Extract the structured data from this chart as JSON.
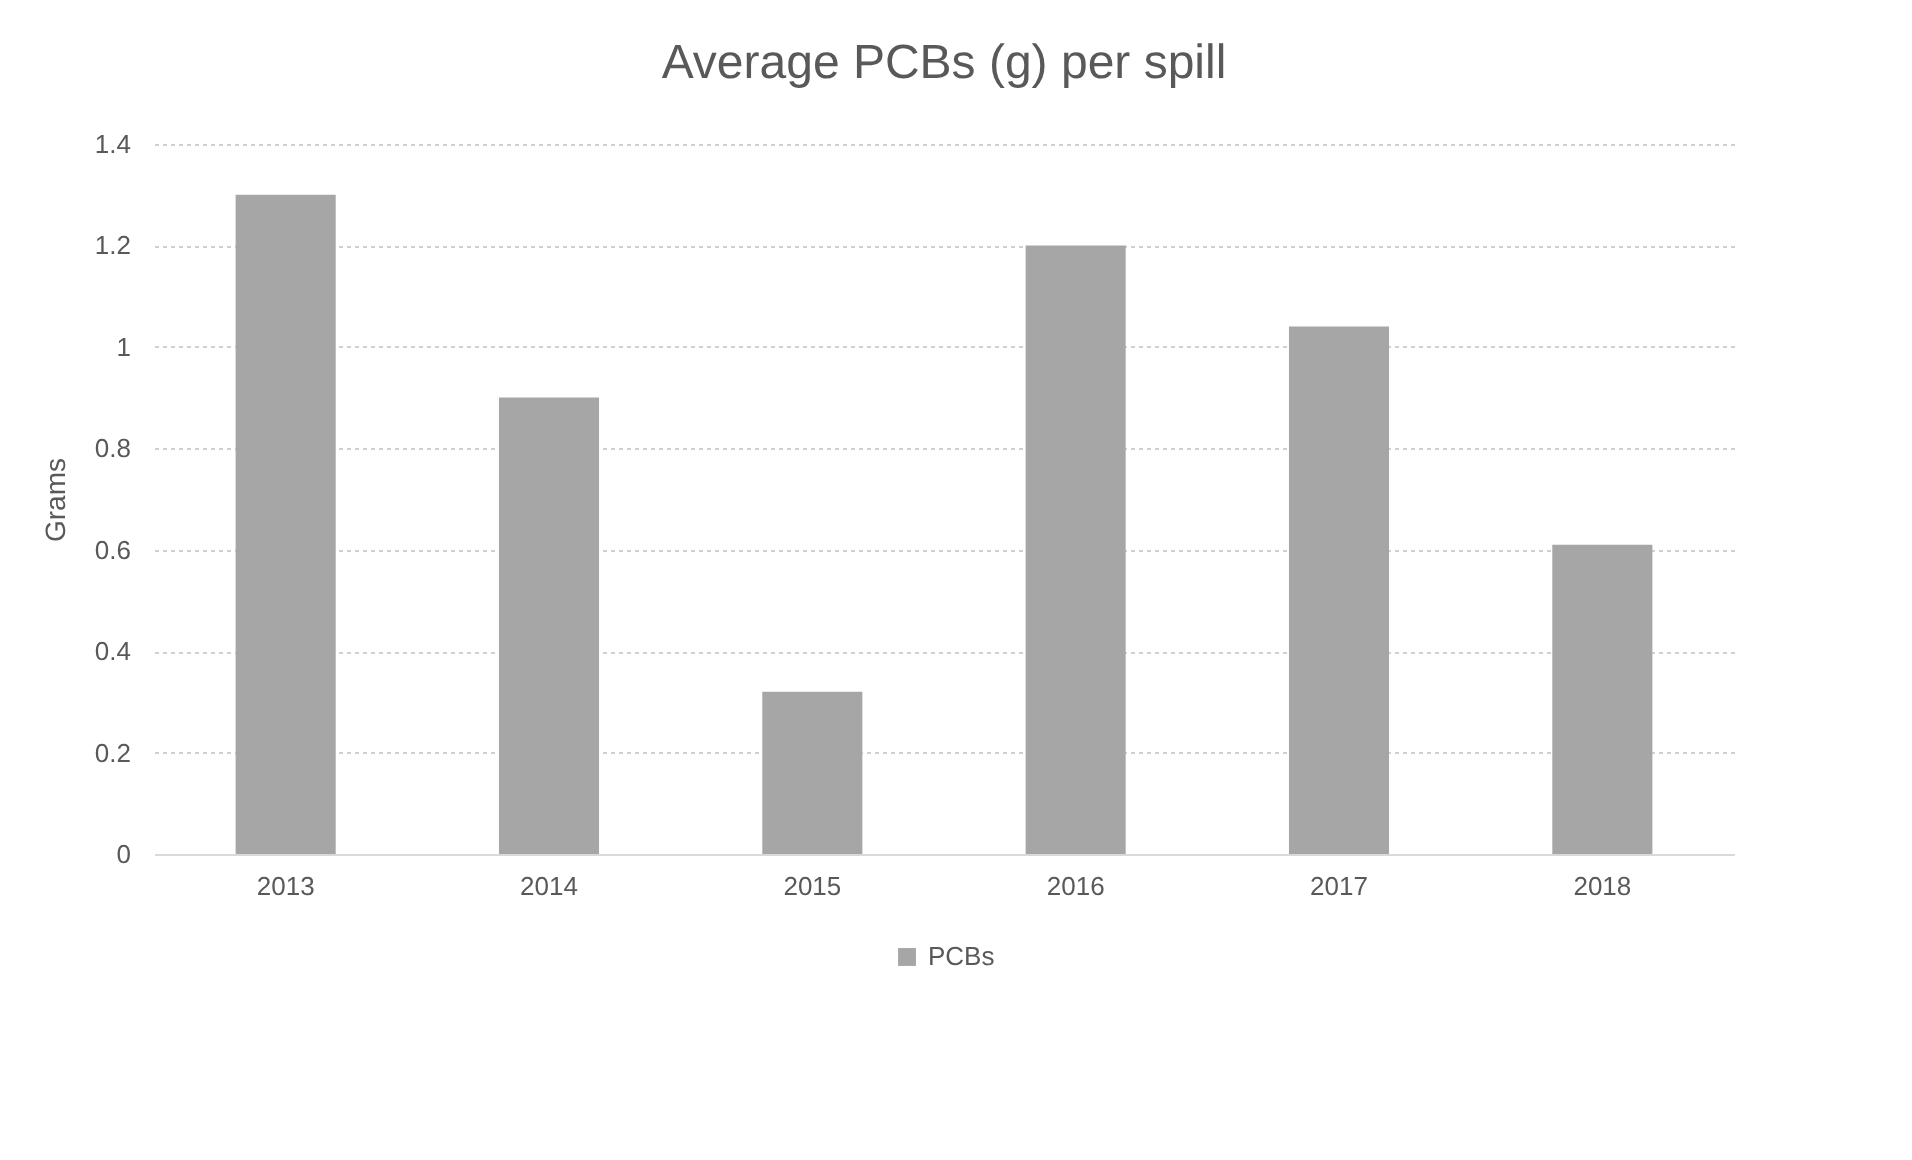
{
  "chart_data": {
    "type": "bar",
    "title": "Average PCBs (g) per spill",
    "ylabel": "Grams",
    "categories": [
      "2013",
      "2014",
      "2015",
      "2016",
      "2017",
      "2018"
    ],
    "series": [
      {
        "name": "PCBs",
        "color": "#a6a6a6",
        "values": [
          1.3,
          0.9,
          0.32,
          1.2,
          1.04,
          0.61
        ]
      }
    ],
    "ylim": [
      0,
      1.4
    ],
    "yticks": [
      0,
      0.2,
      0.4,
      0.6,
      0.8,
      1,
      1.2,
      1.4
    ],
    "grid": "y",
    "legend": "bottom"
  }
}
